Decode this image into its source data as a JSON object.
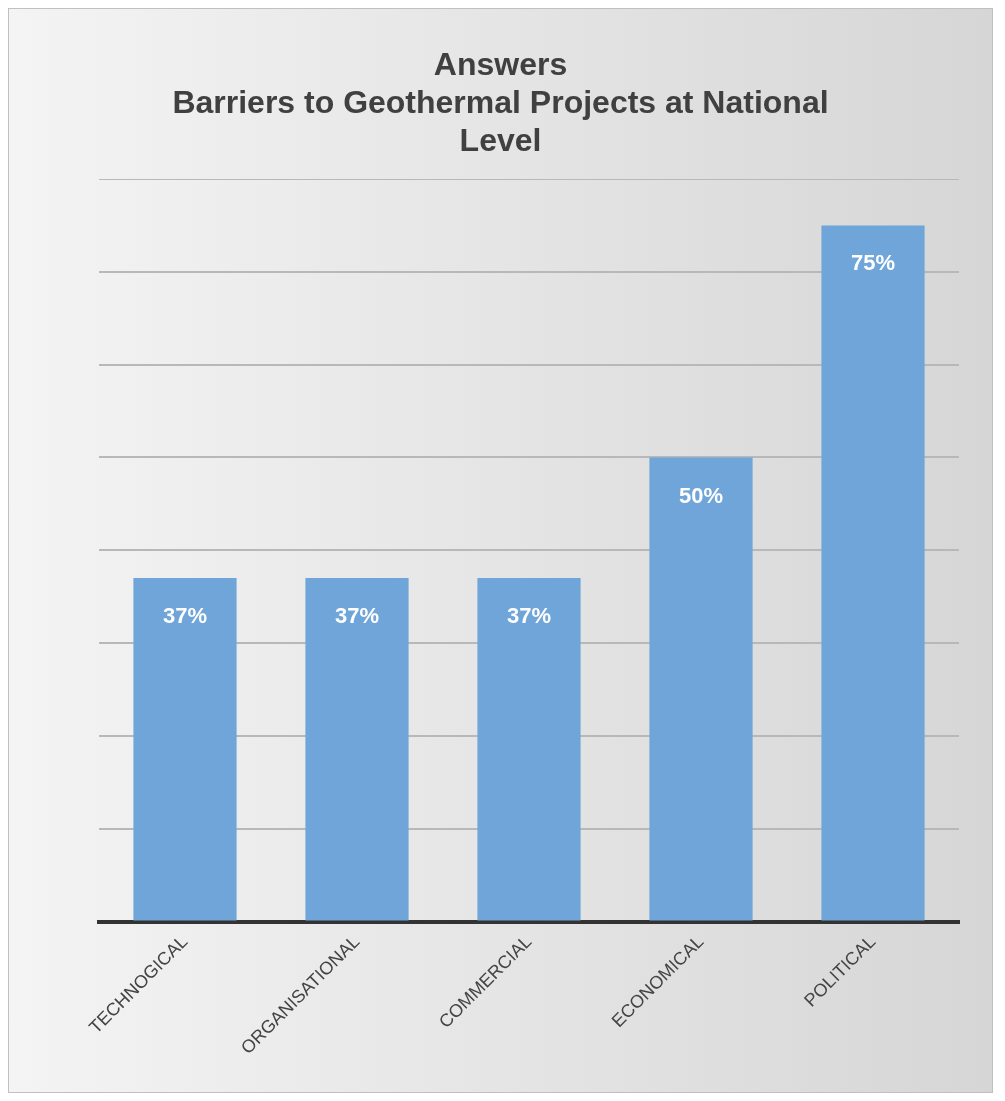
{
  "chart_data": {
    "type": "bar",
    "title": "Answers",
    "subtitle": "Barriers to Geothermal Projects at National Level",
    "categories": [
      "TECHNOGICAL",
      "ORGANISATIONAL",
      "COMMERCIAL",
      "ECONOMICAL",
      "POLITICAL"
    ],
    "values": [
      37,
      37,
      37,
      50,
      75
    ],
    "value_labels": [
      "37%",
      "37%",
      "37%",
      "50%",
      "75%"
    ],
    "color": "#6fa5d8",
    "ylim": [
      0,
      80
    ],
    "yticks": [
      {
        "value": 0,
        "label": null
      },
      {
        "value": 10,
        "label": null
      },
      {
        "value": 20,
        "label": null
      },
      {
        "value": 30,
        "label": null
      },
      {
        "value": 40,
        "label": null
      },
      {
        "value": 50,
        "label": null
      },
      {
        "value": 60,
        "label": null
      },
      {
        "value": 70,
        "label": null
      },
      {
        "value": 80,
        "label": null
      }
    ],
    "tick_labels": "x",
    "grid": "y",
    "legend": false
  }
}
